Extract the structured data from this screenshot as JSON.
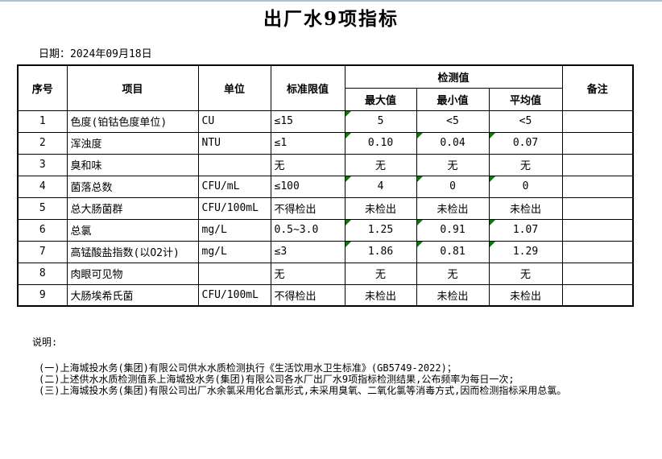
{
  "page": {
    "title": "出厂水9项指标",
    "date_label": "日期：",
    "date_value": "2024年09月18日"
  },
  "table": {
    "headers": {
      "no": "序号",
      "item": "项目",
      "unit": "单位",
      "limit": "标准限值",
      "detection": "检测值",
      "max": "最大值",
      "min": "最小值",
      "avg": "平均值",
      "remark": "备注"
    },
    "rows": [
      {
        "no": "1",
        "item": "色度(铂钴色度单位)",
        "unit": "CU",
        "limit": "≤15",
        "max": "5",
        "min": "<5",
        "avg": "<5",
        "remark": "",
        "flags": [
          "max"
        ]
      },
      {
        "no": "2",
        "item": "浑浊度",
        "unit": "NTU",
        "limit": "≤1",
        "max": "0.10",
        "min": "0.04",
        "avg": "0.07",
        "remark": "",
        "flags": [
          "max",
          "min",
          "avg"
        ]
      },
      {
        "no": "3",
        "item": "臭和味",
        "unit": "",
        "limit": "无",
        "max": "无",
        "min": "无",
        "avg": "无",
        "remark": "",
        "flags": []
      },
      {
        "no": "4",
        "item": "菌落总数",
        "unit": "CFU/mL",
        "limit": "≤100",
        "max": "4",
        "min": "0",
        "avg": "0",
        "remark": "",
        "flags": [
          "max",
          "min",
          "avg"
        ]
      },
      {
        "no": "5",
        "item": "总大肠菌群",
        "unit": "CFU/100mL",
        "limit": "不得检出",
        "max": "未检出",
        "min": "未检出",
        "avg": "未检出",
        "remark": "",
        "flags": []
      },
      {
        "no": "6",
        "item": "总氯",
        "unit": "mg/L",
        "limit": "0.5~3.0",
        "max": "1.25",
        "min": "0.91",
        "avg": "1.07",
        "remark": "",
        "flags": [
          "max",
          "min",
          "avg"
        ]
      },
      {
        "no": "7",
        "item": "高锰酸盐指数(以O2计)",
        "unit": "mg/L",
        "limit": "≤3",
        "max": "1.86",
        "min": "0.81",
        "avg": "1.29",
        "remark": "",
        "flags": [
          "max",
          "min",
          "avg"
        ]
      },
      {
        "no": "8",
        "item": "肉眼可见物",
        "unit": "",
        "limit": "无",
        "max": "无",
        "min": "无",
        "avg": "无",
        "remark": "",
        "flags": []
      },
      {
        "no": "9",
        "item": "大肠埃希氏菌",
        "unit": "CFU/100mL",
        "limit": "不得检出",
        "max": "未检出",
        "min": "未检出",
        "avg": "未检出",
        "remark": "",
        "flags": []
      }
    ]
  },
  "notes": {
    "heading": "说明:",
    "items": [
      "(一)上海城投水务(集团)有限公司供水水质检测执行《生活饮用水卫生标准》(GB5749-2022)；",
      "(二)上述供水水质检测值系上海城投水务(集团)有限公司各水厂出厂水9项指标检测结果,公布频率为每日一次;",
      "(三)上海城投水务(集团)有限公司出厂水余氯采用化合氯形式,未采用臭氧、二氧化氯等消毒方式,因而检测指标采用总氯。"
    ]
  },
  "colors": {
    "flag_green": "#008000",
    "top_border": "#a9c2da"
  }
}
